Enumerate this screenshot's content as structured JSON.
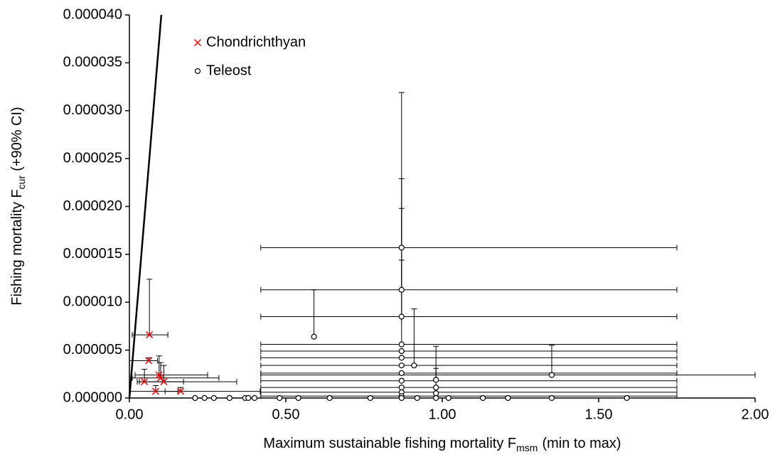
{
  "chart_data": {
    "type": "scatter",
    "xlabel": {
      "text": "Maximum sustainable fishing mortality F",
      "sub": "msm",
      "tail": "(min to max)"
    },
    "ylabel": {
      "text": "Fishing mortality F",
      "sub": "cur",
      "tail": "(+90% CI)"
    },
    "xlim": [
      0,
      2
    ],
    "ylim": [
      0,
      4e-05
    ],
    "xticks": [
      {
        "value": 0,
        "label": "0.00"
      },
      {
        "value": 0.5,
        "label": "0.50"
      },
      {
        "value": 1,
        "label": "1.00"
      },
      {
        "value": 1.5,
        "label": "1.50"
      },
      {
        "value": 2,
        "label": "2.00"
      }
    ],
    "yticks": [
      {
        "value": 0,
        "label": "0.000000"
      },
      {
        "value": 5e-06,
        "label": "0.000005"
      },
      {
        "value": 1e-05,
        "label": "0.000010"
      },
      {
        "value": 1.5e-05,
        "label": "0.000015"
      },
      {
        "value": 2e-05,
        "label": "0.000020"
      },
      {
        "value": 2.5e-05,
        "label": "0.000025"
      },
      {
        "value": 3e-05,
        "label": "0.000030"
      },
      {
        "value": 3.5e-05,
        "label": "0.000035"
      },
      {
        "value": 4e-05,
        "label": "0.000040"
      }
    ],
    "grid": false,
    "legend": "top-left",
    "reference_line": {
      "x": [
        0,
        0.102
      ],
      "y": [
        0,
        4e-05
      ],
      "color": "#000000"
    },
    "series": [
      {
        "name": "Chondrichthyan",
        "color": "#ff0000",
        "marker": "x",
        "x": [
          0.064,
          0.062,
          0.095,
          0.1,
          0.048,
          0.11,
          0.084,
          0.164
        ],
        "values": [
          6.6e-06,
          3.9e-06,
          2.4e-06,
          2.1e-06,
          1.7e-06,
          1.7e-06,
          7e-07,
          7e-07
        ],
        "xmin": [
          0.009,
          0.0,
          0.018,
          0.009,
          0.025,
          0.032,
          0.0,
          0.114
        ],
        "xmax": [
          0.123,
          0.09,
          0.25,
          0.286,
          0.173,
          0.343,
          0.155,
          0.418
        ],
        "ci_upper": [
          1.24e-05,
          4.2e-06,
          4.4e-06,
          3.7e-06,
          3e-06,
          3.4e-06,
          1.3e-06,
          1.1e-06
        ]
      },
      {
        "name": "Teleost",
        "color": "#000000",
        "marker": "circle",
        "x": [
          0.87,
          0.87,
          0.87,
          0.59,
          0.87,
          0.87,
          0.87,
          0.91,
          0.87,
          1.35,
          0.87,
          0.98,
          0.87,
          0.98,
          0.87,
          0.87,
          0.98,
          0.87,
          0.21,
          0.24,
          0.27,
          0.32,
          0.37,
          0.38,
          0.4,
          0.48,
          0.54,
          0.64,
          0.77,
          0.87,
          0.92,
          0.98,
          1.02,
          1.13,
          1.21,
          1.35,
          1.59
        ],
        "values": [
          1.57e-05,
          1.13e-05,
          8.5e-06,
          6.4e-06,
          5.6e-06,
          4.9e-06,
          4.2e-06,
          3.4e-06,
          3.4e-06,
          2.4e-06,
          2.6e-06,
          1.9e-06,
          1.8e-06,
          1.1e-06,
          1.1e-06,
          6e-07,
          5e-07,
          2e-07,
          0,
          0,
          0,
          0,
          0,
          0,
          0,
          0,
          0,
          0,
          0,
          0,
          0,
          0,
          0,
          0,
          0,
          0,
          0
        ],
        "xmin": [
          0.42,
          0.42,
          0.42,
          null,
          0.42,
          0.42,
          0.42,
          null,
          0.42,
          0.42,
          0.42,
          null,
          0.42,
          null,
          0.42,
          0.42,
          null,
          0.42,
          null,
          null,
          null,
          null,
          null,
          null,
          null,
          null,
          null,
          null,
          null,
          null,
          null,
          null,
          null,
          null,
          null,
          null,
          null
        ],
        "xmax": [
          1.75,
          1.75,
          1.75,
          null,
          1.75,
          1.75,
          1.75,
          null,
          1.75,
          2,
          1.75,
          null,
          1.75,
          null,
          1.75,
          1.75,
          null,
          1.75,
          null,
          null,
          null,
          null,
          null,
          null,
          null,
          null,
          null,
          null,
          null,
          null,
          null,
          null,
          null,
          null,
          null,
          null,
          null
        ],
        "ci_upper": [
          3.19e-05,
          2.29e-05,
          1.98e-05,
          1.13e-05,
          1.44e-05,
          null,
          null,
          9.3e-06,
          null,
          5.5e-06,
          null,
          5.4e-06,
          null,
          3.1e-06,
          null,
          null,
          null,
          null,
          null,
          null,
          null,
          null,
          null,
          null,
          null,
          null,
          null,
          null,
          null,
          null,
          null,
          null,
          null,
          null,
          null,
          null,
          null
        ]
      }
    ]
  }
}
